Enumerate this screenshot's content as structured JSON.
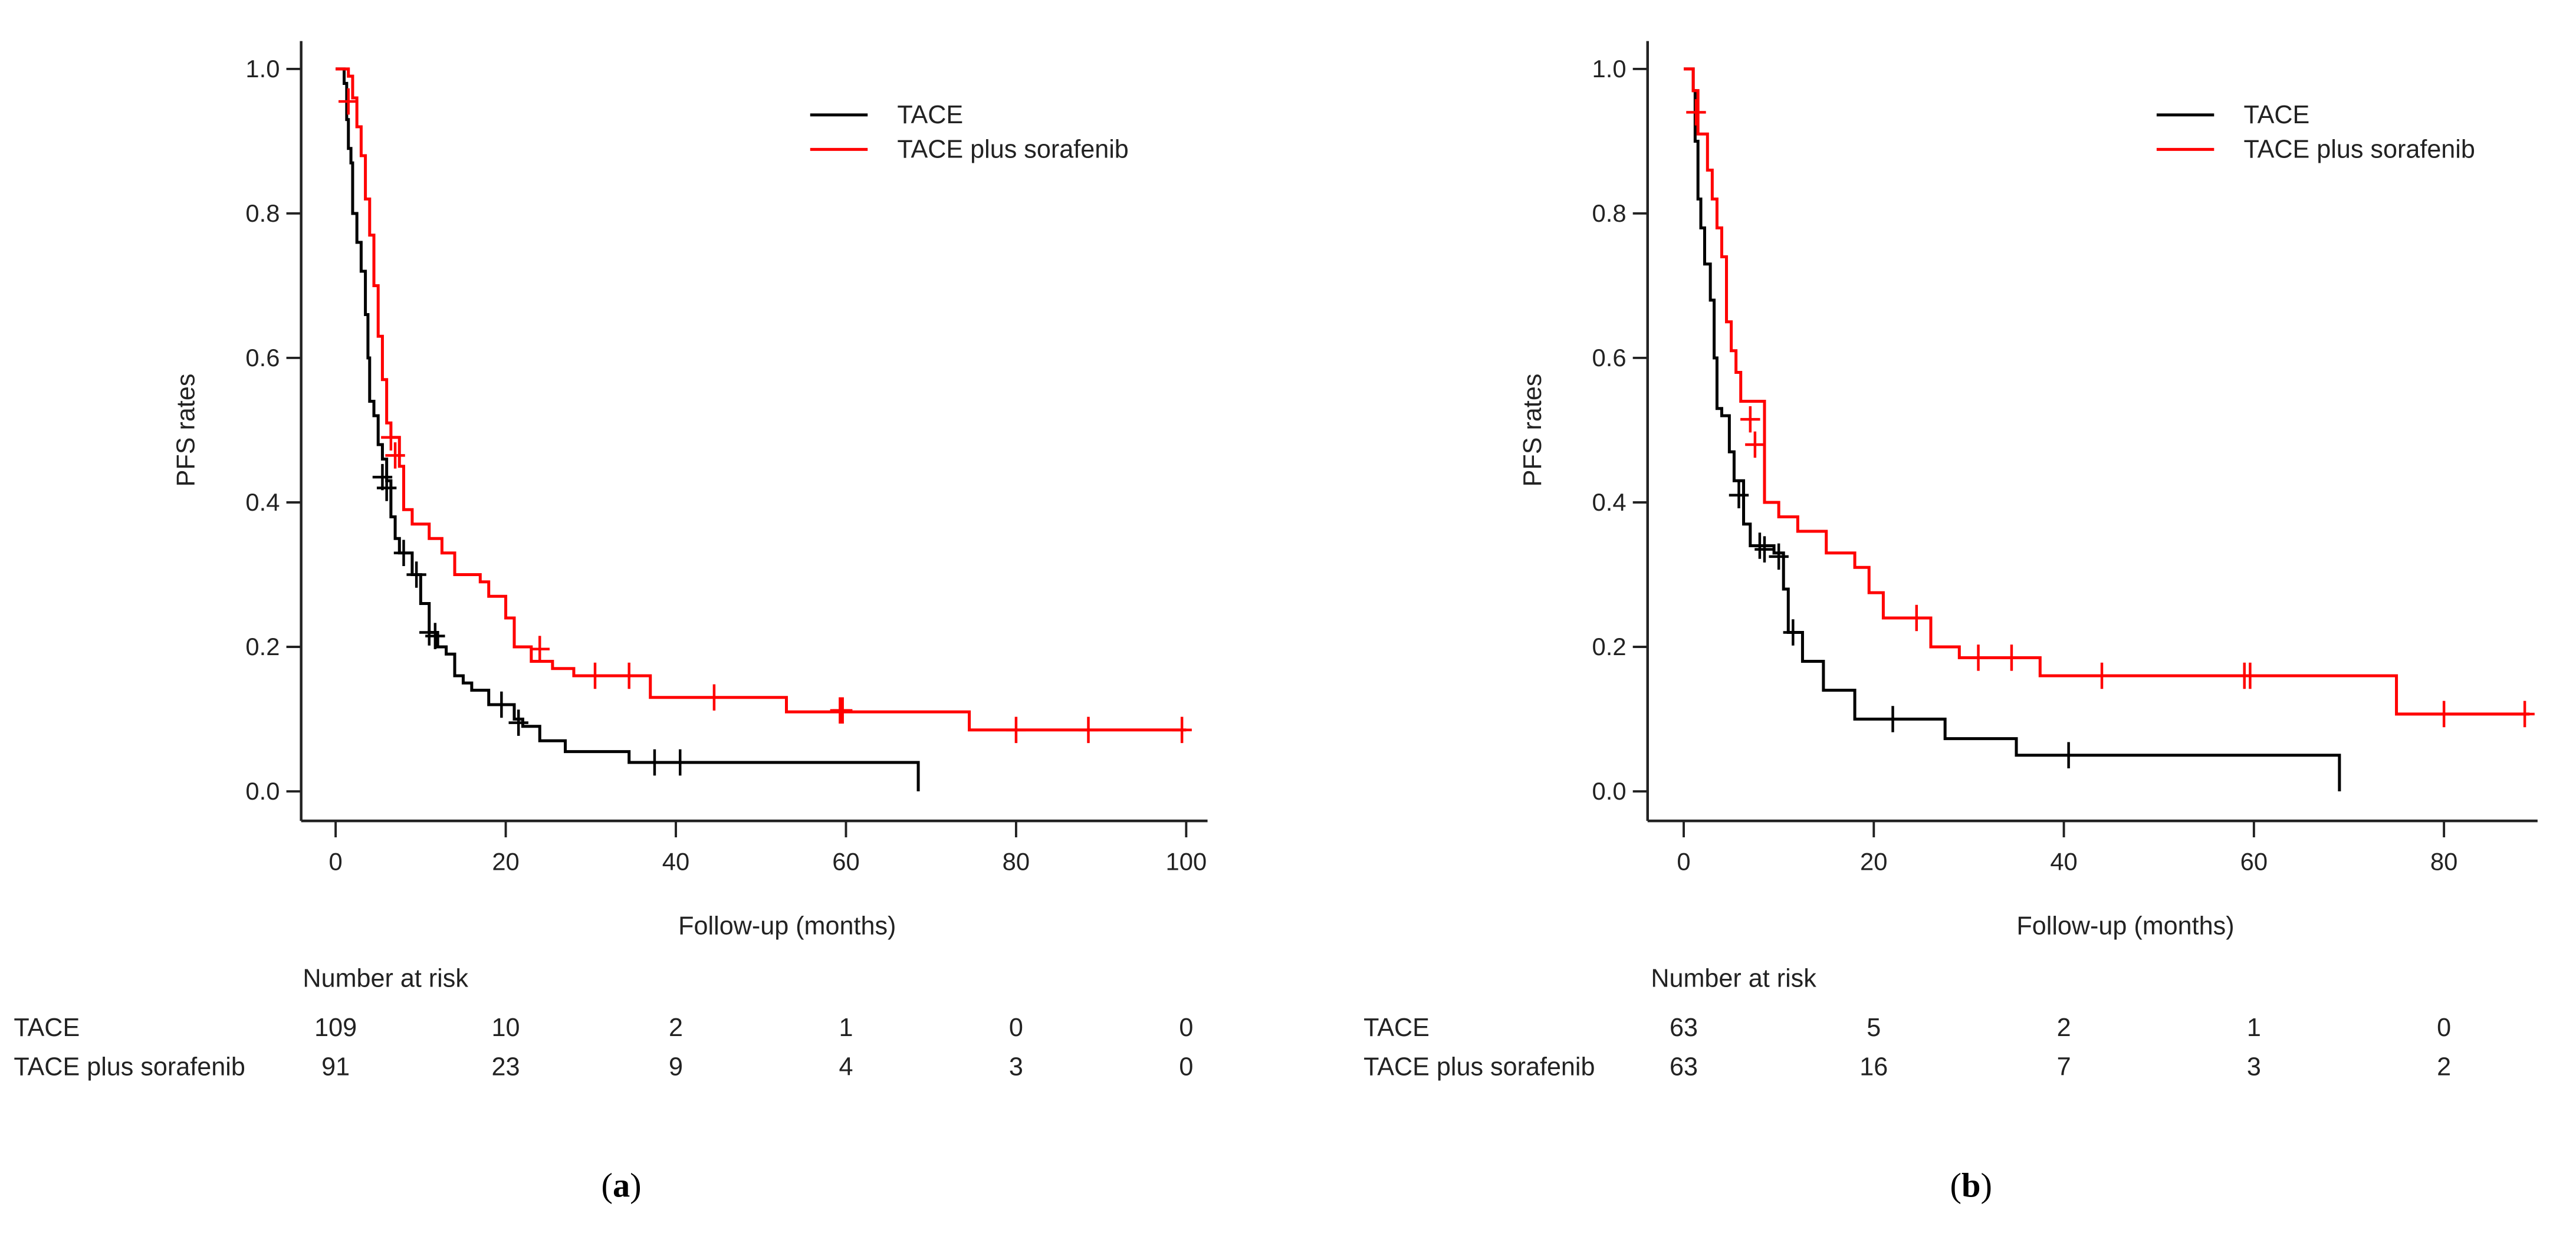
{
  "chart_data": [
    {
      "type": "line",
      "subtype": "kaplan-meier",
      "panel": "a",
      "caption_letter": "a",
      "xlabel": "Follow-up (months)",
      "ylabel": "PFS rates",
      "xlim": [
        0,
        100
      ],
      "ylim": [
        0,
        1
      ],
      "xticks": [
        "0",
        "20",
        "40",
        "60",
        "80",
        "100"
      ],
      "xtick_values": [
        0,
        20,
        40,
        60,
        80,
        100
      ],
      "yticks": [
        "0.0",
        "0.2",
        "0.4",
        "0.6",
        "0.8",
        "1.0"
      ],
      "ytick_values": [
        0,
        0.2,
        0.4,
        0.6,
        0.8,
        1.0
      ],
      "grid": false,
      "legend_placement": "top-right",
      "series": [
        {
          "name": "TACE",
          "color": "#000000",
          "steps": [
            [
              0,
              1
            ],
            [
              1,
              0.98
            ],
            [
              1.3,
              0.93
            ],
            [
              1.5,
              0.89
            ],
            [
              1.8,
              0.87
            ],
            [
              2,
              0.8
            ],
            [
              2.5,
              0.76
            ],
            [
              3,
              0.72
            ],
            [
              3.5,
              0.66
            ],
            [
              3.8,
              0.6
            ],
            [
              4,
              0.54
            ],
            [
              4.5,
              0.52
            ],
            [
              5,
              0.48
            ],
            [
              5.5,
              0.46
            ],
            [
              6,
              0.43
            ],
            [
              6.5,
              0.38
            ],
            [
              7,
              0.35
            ],
            [
              7.5,
              0.33
            ],
            [
              9,
              0.3
            ],
            [
              10,
              0.26
            ],
            [
              11,
              0.22
            ],
            [
              12,
              0.2
            ],
            [
              13,
              0.19
            ],
            [
              14,
              0.16
            ],
            [
              15,
              0.15
            ],
            [
              16,
              0.14
            ],
            [
              18,
              0.12
            ],
            [
              21,
              0.1
            ],
            [
              22,
              0.09
            ],
            [
              24,
              0.07
            ],
            [
              27,
              0.055
            ],
            [
              34.5,
              0.04
            ],
            [
              68.5,
              0
            ]
          ],
          "end": 68.5,
          "censored": [
            [
              5.5,
              0.435
            ],
            [
              6,
              0.42
            ],
            [
              8,
              0.33
            ],
            [
              9.5,
              0.3
            ],
            [
              11,
              0.22
            ],
            [
              11.7,
              0.215
            ],
            [
              19.5,
              0.12
            ],
            [
              21.5,
              0.095
            ],
            [
              37.5,
              0.04
            ],
            [
              40.5,
              0.04
            ]
          ]
        },
        {
          "name": "TACE plus sorafenib",
          "color": "#ff0000",
          "steps": [
            [
              0,
              1
            ],
            [
              1.5,
              0.99
            ],
            [
              2,
              0.96
            ],
            [
              2.5,
              0.92
            ],
            [
              3,
              0.88
            ],
            [
              3.5,
              0.82
            ],
            [
              4,
              0.77
            ],
            [
              4.5,
              0.7
            ],
            [
              5,
              0.63
            ],
            [
              5.5,
              0.57
            ],
            [
              6,
              0.51
            ],
            [
              6.5,
              0.49
            ],
            [
              7.5,
              0.45
            ],
            [
              8,
              0.39
            ],
            [
              9,
              0.37
            ],
            [
              11,
              0.35
            ],
            [
              12.5,
              0.33
            ],
            [
              14,
              0.3
            ],
            [
              17,
              0.29
            ],
            [
              18,
              0.27
            ],
            [
              20,
              0.24
            ],
            [
              21,
              0.2
            ],
            [
              23,
              0.18
            ],
            [
              25.5,
              0.17
            ],
            [
              28,
              0.16
            ],
            [
              37,
              0.13
            ],
            [
              53,
              0.11
            ],
            [
              74.5,
              0.085
            ]
          ],
          "end": 100,
          "censored": [
            [
              1.5,
              0.955
            ],
            [
              6.5,
              0.49
            ],
            [
              7,
              0.465
            ],
            [
              24,
              0.197
            ],
            [
              30.5,
              0.16
            ],
            [
              34.5,
              0.16
            ],
            [
              44.5,
              0.13
            ],
            [
              59.3,
              0.112
            ],
            [
              59.6,
              0.112
            ],
            [
              80,
              0.085
            ],
            [
              88.5,
              0.085
            ],
            [
              99.5,
              0.085
            ]
          ]
        }
      ],
      "risk_table": {
        "title": "Number at risk",
        "rows": [
          {
            "label": "TACE",
            "values": [
              "109",
              "10",
              "2",
              "1",
              "0",
              "0"
            ]
          },
          {
            "label": "TACE plus sorafenib",
            "values": [
              "91",
              "23",
              "9",
              "4",
              "3",
              "0"
            ]
          }
        ]
      }
    },
    {
      "type": "line",
      "subtype": "kaplan-meier",
      "panel": "b",
      "caption_letter": "b",
      "xlabel": "Follow-up (months)",
      "ylabel": "PFS rates",
      "xlim": [
        0,
        88
      ],
      "ylim": [
        0,
        1
      ],
      "xticks": [
        "0",
        "20",
        "40",
        "60",
        "80"
      ],
      "xtick_values": [
        0,
        20,
        40,
        60,
        80
      ],
      "yticks": [
        "0.0",
        "0.2",
        "0.4",
        "0.6",
        "0.8",
        "1.0"
      ],
      "ytick_values": [
        0,
        0.2,
        0.4,
        0.6,
        0.8,
        1.0
      ],
      "grid": false,
      "legend_placement": "top-right",
      "series": [
        {
          "name": "TACE",
          "color": "#000000",
          "steps": [
            [
              0,
              1
            ],
            [
              1,
              0.97
            ],
            [
              1.2,
              0.9
            ],
            [
              1.5,
              0.82
            ],
            [
              1.8,
              0.78
            ],
            [
              2.2,
              0.73
            ],
            [
              2.8,
              0.68
            ],
            [
              3.2,
              0.6
            ],
            [
              3.5,
              0.53
            ],
            [
              4,
              0.52
            ],
            [
              4.8,
              0.47
            ],
            [
              5.3,
              0.43
            ],
            [
              6.3,
              0.37
            ],
            [
              7,
              0.34
            ],
            [
              9.5,
              0.33
            ],
            [
              10.5,
              0.28
            ],
            [
              11,
              0.22
            ],
            [
              12.5,
              0.18
            ],
            [
              14.7,
              0.14
            ],
            [
              18,
              0.1
            ],
            [
              27.5,
              0.073
            ],
            [
              35,
              0.05
            ],
            [
              69,
              0
            ]
          ],
          "end": 69,
          "censored": [
            [
              5.8,
              0.41
            ],
            [
              8,
              0.34
            ],
            [
              8.5,
              0.335
            ],
            [
              10,
              0.325
            ],
            [
              11.5,
              0.22
            ],
            [
              22,
              0.1
            ],
            [
              40.5,
              0.05
            ]
          ]
        },
        {
          "name": "TACE plus sorafenib",
          "color": "#ff0000",
          "steps": [
            [
              0,
              1
            ],
            [
              1,
              0.97
            ],
            [
              1.5,
              0.91
            ],
            [
              2.5,
              0.86
            ],
            [
              3,
              0.82
            ],
            [
              3.5,
              0.78
            ],
            [
              4,
              0.74
            ],
            [
              4.5,
              0.65
            ],
            [
              5,
              0.61
            ],
            [
              5.5,
              0.58
            ],
            [
              6,
              0.54
            ],
            [
              8.5,
              0.4
            ],
            [
              10,
              0.38
            ],
            [
              12,
              0.36
            ],
            [
              15,
              0.33
            ],
            [
              18,
              0.31
            ],
            [
              19.5,
              0.275
            ],
            [
              21,
              0.24
            ],
            [
              26,
              0.2
            ],
            [
              29,
              0.185
            ],
            [
              37.5,
              0.16
            ],
            [
              75,
              0.107
            ]
          ],
          "end": 89,
          "censored": [
            [
              1.3,
              0.94
            ],
            [
              7,
              0.515
            ],
            [
              7.5,
              0.48
            ],
            [
              24.5,
              0.24
            ],
            [
              31,
              0.185
            ],
            [
              34.5,
              0.185
            ],
            [
              44,
              0.16
            ],
            [
              59,
              0.16
            ],
            [
              59.6,
              0.16
            ],
            [
              80,
              0.107
            ],
            [
              88.5,
              0.107
            ]
          ]
        }
      ],
      "risk_table": {
        "title": "Number at risk",
        "rows": [
          {
            "label": "TACE",
            "values": [
              "63",
              "5",
              "2",
              "1",
              "0"
            ]
          },
          {
            "label": "TACE plus sorafenib",
            "values": [
              "63",
              "16",
              "7",
              "3",
              "2"
            ]
          }
        ]
      }
    }
  ]
}
